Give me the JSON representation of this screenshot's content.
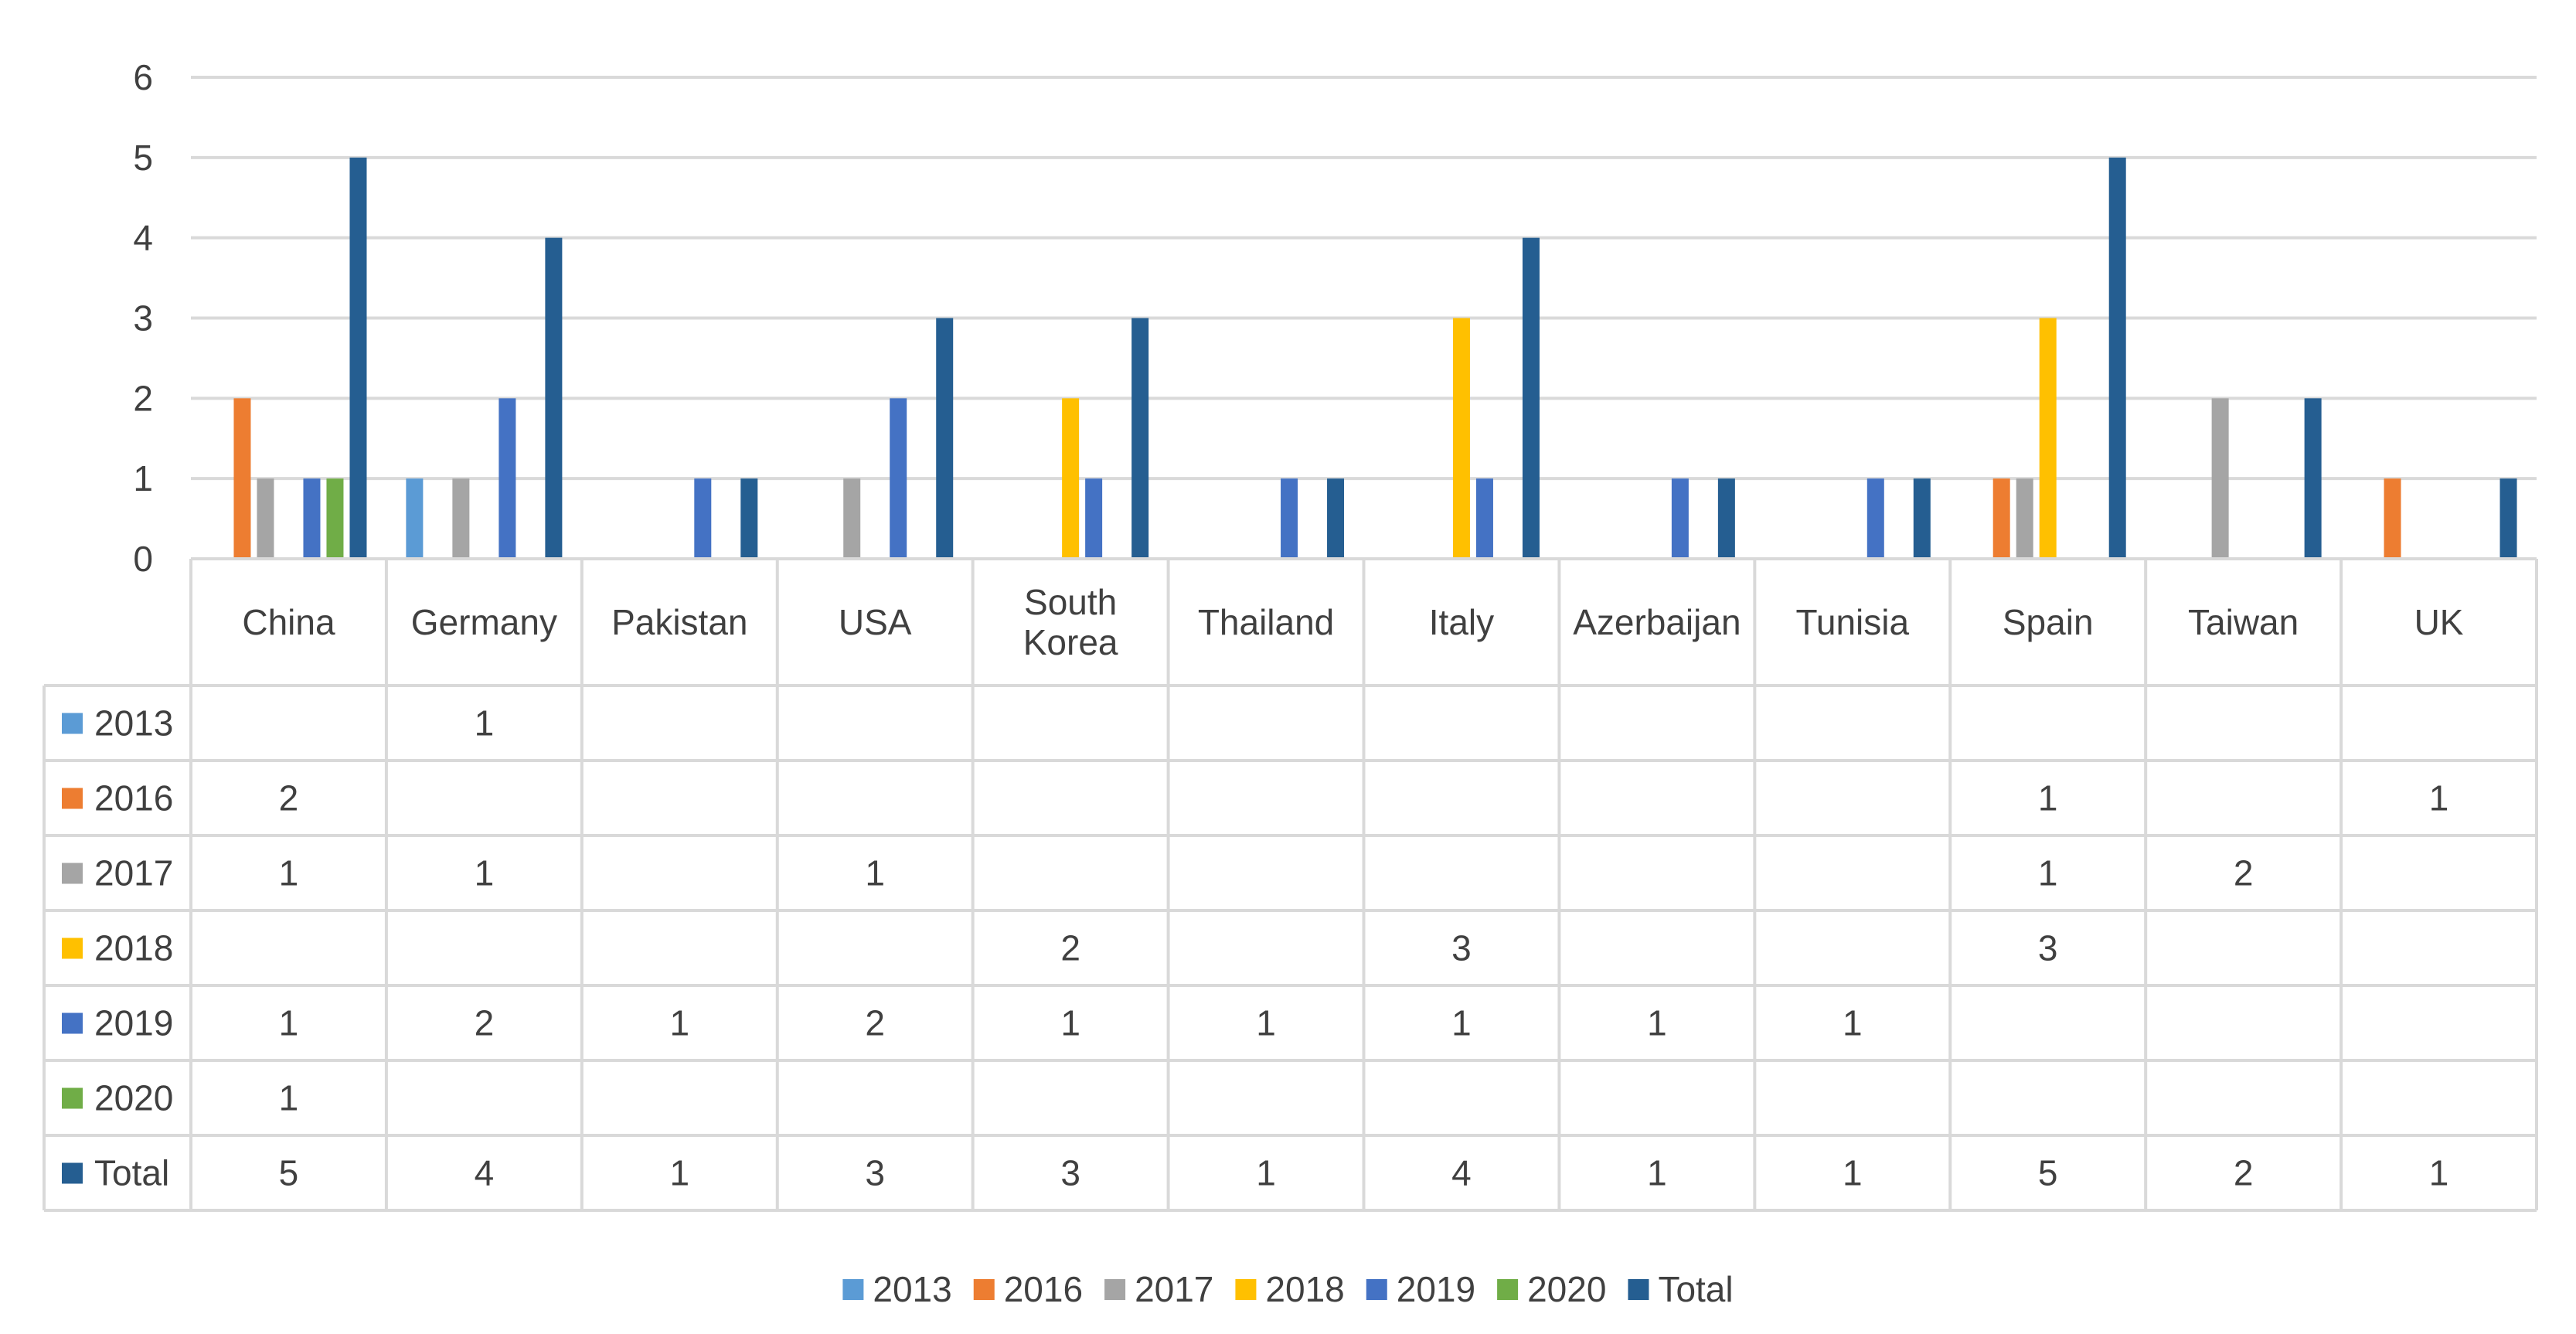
{
  "chart_data": {
    "type": "bar",
    "categories": [
      "China",
      "Germany",
      "Pakistan",
      "USA",
      "South Korea",
      "Thailand",
      "Italy",
      "Azerbaijan",
      "Tunisia",
      "Spain",
      "Taiwan",
      "UK"
    ],
    "category_lines": [
      [
        "China"
      ],
      [
        "Germany"
      ],
      [
        "Pakistan"
      ],
      [
        "USA"
      ],
      [
        "South",
        "Korea"
      ],
      [
        "Thailand"
      ],
      [
        "Italy"
      ],
      [
        "Azerbaijan"
      ],
      [
        "Tunisia"
      ],
      [
        "Spain"
      ],
      [
        "Taiwan"
      ],
      [
        "UK"
      ]
    ],
    "series": [
      {
        "name": "2013",
        "color": "#5B9BD5",
        "values": [
          null,
          1,
          null,
          null,
          null,
          null,
          null,
          null,
          null,
          null,
          null,
          null
        ]
      },
      {
        "name": "2016",
        "color": "#ED7D31",
        "values": [
          2,
          null,
          null,
          null,
          null,
          null,
          null,
          null,
          null,
          1,
          null,
          1
        ]
      },
      {
        "name": "2017",
        "color": "#A5A5A5",
        "values": [
          1,
          1,
          null,
          1,
          null,
          null,
          null,
          null,
          null,
          1,
          2,
          null
        ]
      },
      {
        "name": "2018",
        "color": "#FFC000",
        "values": [
          null,
          null,
          null,
          null,
          2,
          null,
          3,
          null,
          null,
          3,
          null,
          null
        ]
      },
      {
        "name": "2019",
        "color": "#4472C4",
        "values": [
          1,
          2,
          1,
          2,
          1,
          1,
          1,
          1,
          1,
          null,
          null,
          null
        ]
      },
      {
        "name": "2020",
        "color": "#70AD47",
        "values": [
          1,
          null,
          null,
          null,
          null,
          null,
          null,
          null,
          null,
          null,
          null,
          null
        ]
      },
      {
        "name": "Total",
        "color": "#255E91",
        "values": [
          5,
          4,
          1,
          3,
          3,
          1,
          4,
          1,
          1,
          5,
          2,
          1
        ]
      }
    ],
    "ylim": [
      0,
      6
    ],
    "yticks": [
      0,
      1,
      2,
      3,
      4,
      5,
      6
    ],
    "grid": true,
    "legend": "bottom",
    "data_table": true
  }
}
